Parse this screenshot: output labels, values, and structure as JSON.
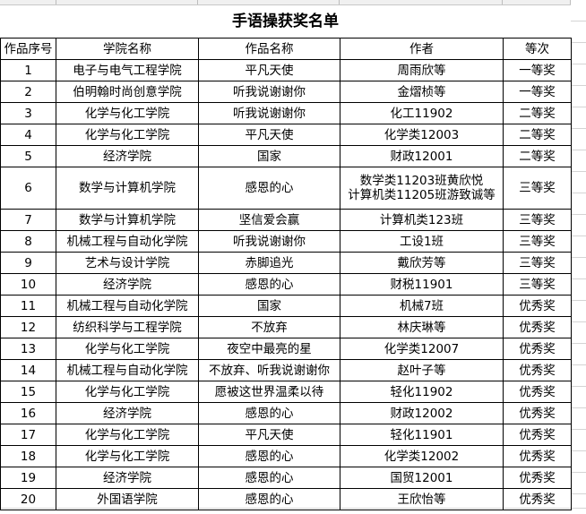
{
  "title": "手语操获奖名单",
  "headers": [
    "作品序号",
    "学院名称",
    "作品名称",
    "作者",
    "等次"
  ],
  "rows": [
    [
      "1",
      "电子与电气工程学院",
      "平凡天使",
      "周雨欣等",
      "一等奖"
    ],
    [
      "2",
      "伯明翰时尚创意学院",
      "听我说谢谢你",
      "金熠桢等",
      "一等奖"
    ],
    [
      "3",
      "化学与化工学院",
      "听我说谢谢你",
      "化工11902",
      "二等奖"
    ],
    [
      "4",
      "化学与化工学院",
      "平凡天使",
      "化学类12003",
      "二等奖"
    ],
    [
      "5",
      "经济学院",
      "国家",
      "财政12001",
      "二等奖"
    ],
    [
      "6",
      "数学与计算机学院",
      "感恩的心",
      "数学类11203班黄欣悦\n计算机类11205班游致诚等",
      "三等奖"
    ],
    [
      "7",
      "数学与计算机学院",
      "坚信爱会赢",
      "计算机类123班",
      "三等奖"
    ],
    [
      "8",
      "机械工程与自动化学院",
      "听我说谢谢你",
      "工设1班",
      "三等奖"
    ],
    [
      "9",
      "艺术与设计学院",
      "赤脚追光",
      "戴欣芳等",
      "三等奖"
    ],
    [
      "10",
      "经济学院",
      "感恩的心",
      "财税11901",
      "三等奖"
    ],
    [
      "11",
      "机械工程与自动化学院",
      "国家",
      "机械7班",
      "优秀奖"
    ],
    [
      "12",
      "纺织科学与工程学院",
      "不放弃",
      "林庆琳等",
      "优秀奖"
    ],
    [
      "13",
      "化学与化工学院",
      "夜空中最亮的星",
      "化学类12007",
      "优秀奖"
    ],
    [
      "14",
      "机械工程与自动化学院",
      "不放弃、听我说谢谢你",
      "赵叶子等",
      "优秀奖"
    ],
    [
      "15",
      "化学与化工学院",
      "愿被这世界温柔以待",
      "轻化11902",
      "优秀奖"
    ],
    [
      "16",
      "经济学院",
      "感恩的心",
      "财政12002",
      "优秀奖"
    ],
    [
      "17",
      "化学与化工学院",
      "平凡天使",
      "轻化11901",
      "优秀奖"
    ],
    [
      "18",
      "化学与化工学院",
      "感恩的心",
      "化学类12002",
      "优秀奖"
    ],
    [
      "19",
      "经济学院",
      "感恩的心",
      "国贸12001",
      "优秀奖"
    ],
    [
      "20",
      "外国语学院",
      "感恩的心",
      "王欣怡等",
      "优秀奖"
    ]
  ]
}
